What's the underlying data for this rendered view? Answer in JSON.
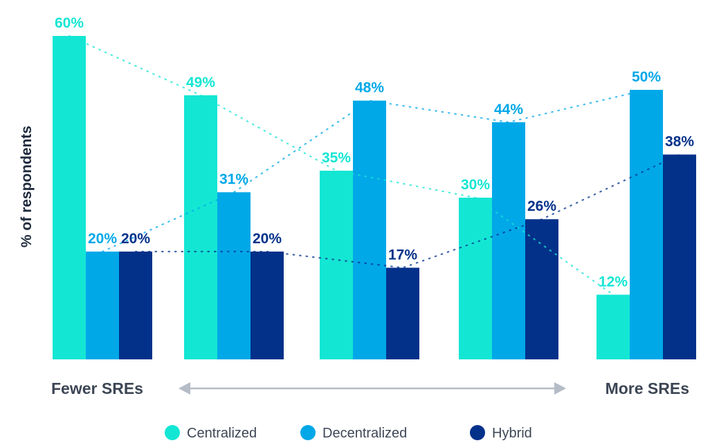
{
  "chart_data": {
    "type": "bar",
    "ylabel": "% of respondents",
    "ylim": [
      0,
      60
    ],
    "categories": [
      "",
      "",
      "",
      "",
      ""
    ],
    "series": [
      {
        "name": "Centralized",
        "color": "#14e6d4",
        "label_color": "#14e6d4",
        "values": [
          60,
          49,
          35,
          30,
          12
        ],
        "labels": [
          "60%",
          "49%",
          "35%",
          "30%",
          "12%"
        ]
      },
      {
        "name": "Decentralized",
        "color": "#00a8e8",
        "label_color": "#00a8e8",
        "values": [
          20,
          31,
          48,
          44,
          50
        ],
        "labels": [
          "20%",
          "31%",
          "48%",
          "44%",
          "50%"
        ]
      },
      {
        "name": "Hybrid",
        "color": "#03318a",
        "label_color": "#03318a",
        "values": [
          20,
          20,
          17,
          26,
          38
        ],
        "labels": [
          "20%",
          "20%",
          "17%",
          "26%",
          "38%"
        ]
      }
    ],
    "trend_lines": "dotted",
    "grid": false,
    "legend_position": "bottom-center",
    "x_axis": {
      "left_label": "Fewer SREs",
      "right_label": "More SREs",
      "arrow_color": "#b4bcc6"
    }
  }
}
